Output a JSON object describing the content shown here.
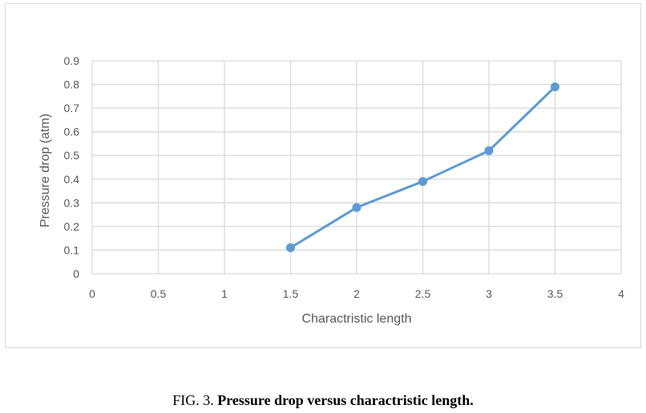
{
  "chart_data": {
    "type": "line",
    "title": "",
    "xlabel": "Charactristic length",
    "ylabel": "Pressure drop (atm)",
    "xlim": [
      0,
      4
    ],
    "ylim": [
      0,
      0.9
    ],
    "x_ticks": [
      0,
      0.5,
      1,
      1.5,
      2,
      2.5,
      3,
      3.5,
      4
    ],
    "x_tick_labels": [
      "0",
      "0.5",
      "1",
      "1.5",
      "2",
      "2.5",
      "3",
      "3.5",
      "4"
    ],
    "y_ticks": [
      0,
      0.1,
      0.2,
      0.3,
      0.4,
      0.5,
      0.6,
      0.7,
      0.8,
      0.9
    ],
    "y_tick_labels": [
      "0",
      "0.1",
      "0.2",
      "0.3",
      "0.4",
      "0.5",
      "0.6",
      "0.7",
      "0.8",
      "0.9"
    ],
    "grid": true,
    "legend": "none",
    "series": [
      {
        "color": "#5b9bd5",
        "x": [
          1.5,
          2,
          2.5,
          3,
          3.5
        ],
        "y": [
          0.11,
          0.28,
          0.39,
          0.52,
          0.79
        ]
      }
    ],
    "colors": {
      "grid": "#d9d9d9",
      "text": "#595959"
    }
  },
  "caption": {
    "prefix": "FIG. 3. ",
    "text": "Pressure drop versus charactristic length."
  }
}
